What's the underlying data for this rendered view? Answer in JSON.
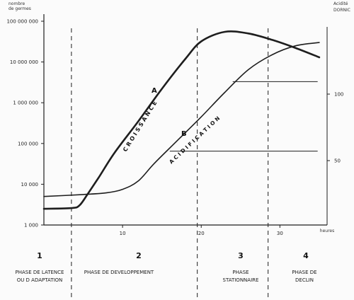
{
  "chart_data": {
    "type": "line",
    "left_axis": {
      "title_lines": [
        "nombre",
        "de germes"
      ],
      "scale": "log",
      "ticks": [
        "1 000",
        "10 000",
        "100 000",
        "1 000 000",
        "10 000 000",
        "100 000 000"
      ],
      "range": [
        1000,
        100000000
      ]
    },
    "right_axis": {
      "title_lines": [
        "Acidité",
        "DORNIC"
      ],
      "ticks": [
        "50",
        "100"
      ]
    },
    "x_axis": {
      "label": "heures",
      "ticks": [
        "10",
        "20",
        "30"
      ],
      "range": [
        0,
        36
      ]
    },
    "series": [
      {
        "name": "CROISSANCE",
        "marker": "A",
        "axis": "left",
        "points": [
          [
            0,
            2500
          ],
          [
            3.5,
            2600
          ],
          [
            4.5,
            3000
          ],
          [
            5.5,
            5500
          ],
          [
            7,
            15000
          ],
          [
            9,
            60000
          ],
          [
            12,
            350000
          ],
          [
            15,
            2200000
          ],
          [
            18,
            12000000
          ],
          [
            20,
            32000000
          ],
          [
            23,
            55000000
          ],
          [
            26,
            50000000
          ],
          [
            29,
            35000000
          ],
          [
            32,
            22000000
          ],
          [
            35,
            13000000
          ]
        ]
      },
      {
        "name": "ACIDIFICATION",
        "marker": "B",
        "axis": "left",
        "points": [
          [
            0,
            5000
          ],
          [
            5,
            5600
          ],
          [
            8,
            6200
          ],
          [
            10,
            7500
          ],
          [
            12,
            12000
          ],
          [
            14,
            32000
          ],
          [
            17,
            120000
          ],
          [
            20,
            450000
          ],
          [
            23,
            1800000
          ],
          [
            26,
            6500000
          ],
          [
            29,
            15000000
          ],
          [
            32,
            25000000
          ],
          [
            35,
            30000000
          ]
        ]
      }
    ],
    "reference_lines": [
      {
        "y": 3300000,
        "x_from": 24,
        "x_to": 34.8
      },
      {
        "y": 65000,
        "x_from": 16,
        "x_to": 34.8
      }
    ],
    "phase_boundaries": [
      3.5,
      19.5,
      28.5
    ],
    "phases": [
      {
        "number": "1",
        "name_lines": [
          "PHASE DE LATENCE",
          "OU D ADAPTATION"
        ]
      },
      {
        "number": "2",
        "name_lines": [
          "PHASE DE DEVELOPPEMENT"
        ]
      },
      {
        "number": "3",
        "name_lines": [
          "PHASE",
          "STATIONNAIRE"
        ]
      },
      {
        "number": "4",
        "name_lines": [
          "PHASE DE",
          "DECLIN"
        ]
      }
    ],
    "colors": {
      "ink": "#1e1e1e",
      "background": "#fbfbfb"
    }
  }
}
